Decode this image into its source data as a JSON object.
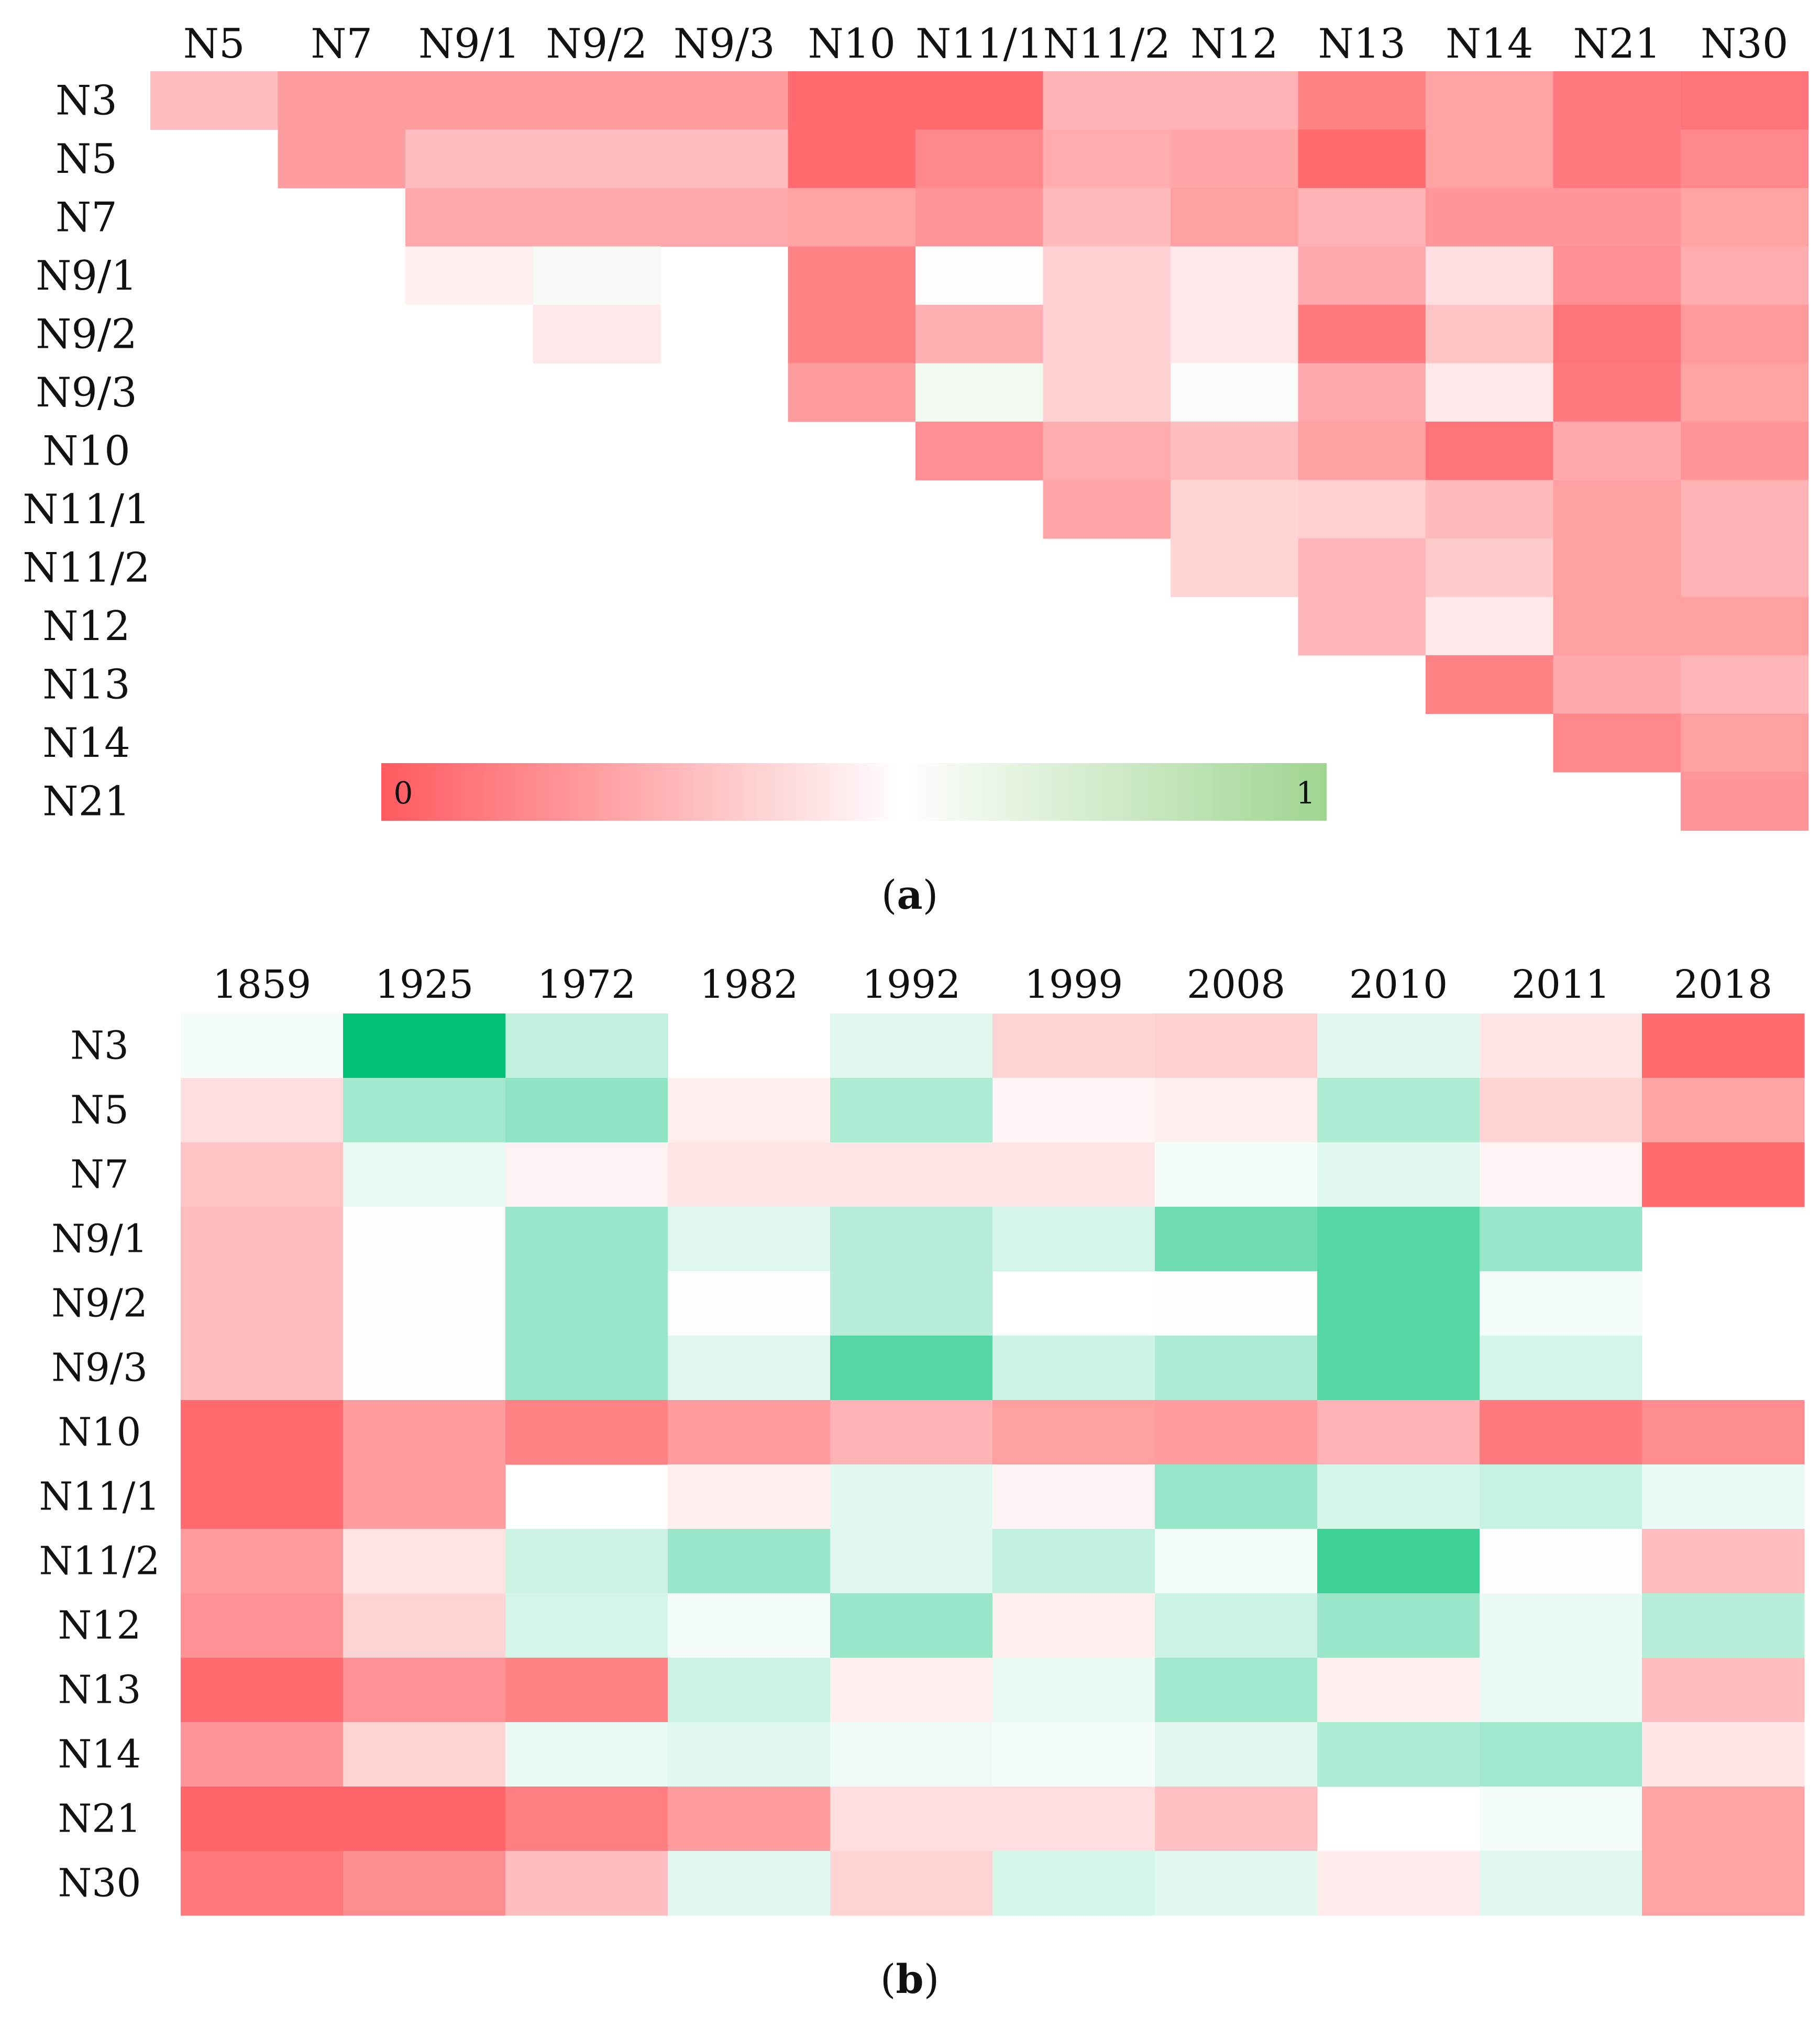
{
  "chart_data": [
    {
      "type": "heatmap",
      "panel_label": "a",
      "title": "",
      "xlabel": "",
      "ylabel": "",
      "columns": [
        "N5",
        "N7",
        "N9/1",
        "N9/2",
        "N9/3",
        "N10",
        "N11/1",
        "N11/2",
        "N12",
        "N13",
        "N14",
        "N21",
        "N30"
      ],
      "rows": [
        "N3",
        "N5",
        "N7",
        "N9/1",
        "N9/2",
        "N9/3",
        "N10",
        "N11/1",
        "N11/2",
        "N12",
        "N13",
        "N14",
        "N21"
      ],
      "value_range": [
        0,
        1
      ],
      "color_scale": {
        "low": "#ff5a5f",
        "mid": "#ffffff",
        "high": "#9fd591"
      },
      "colorbar": {
        "min_label": "0",
        "max_label": "1"
      },
      "values": [
        [
          0.3,
          0.2,
          0.2,
          0.2,
          0.2,
          0.05,
          0.05,
          0.27,
          0.27,
          0.12,
          0.22,
          0.1,
          0.08
        ],
        [
          null,
          0.2,
          0.3,
          0.3,
          0.3,
          0.05,
          0.14,
          0.25,
          0.23,
          0.05,
          0.22,
          0.1,
          0.14
        ],
        [
          null,
          null,
          0.24,
          0.24,
          0.24,
          0.22,
          0.18,
          0.29,
          0.21,
          0.27,
          0.18,
          0.18,
          0.22
        ],
        [
          null,
          null,
          0.45,
          0.55,
          null,
          0.12,
          0.49,
          0.36,
          0.43,
          0.24,
          0.4,
          0.16,
          0.25
        ],
        [
          null,
          null,
          null,
          0.43,
          null,
          0.12,
          0.26,
          0.36,
          0.43,
          0.1,
          0.32,
          0.08,
          0.19
        ],
        [
          null,
          null,
          null,
          null,
          null,
          0.2,
          0.56,
          0.36,
          0.52,
          0.24,
          0.43,
          0.1,
          0.22
        ],
        [
          null,
          null,
          null,
          null,
          null,
          null,
          0.16,
          0.25,
          0.3,
          0.21,
          0.08,
          0.24,
          0.18
        ],
        [
          null,
          null,
          null,
          null,
          null,
          null,
          null,
          0.23,
          0.37,
          0.35,
          0.29,
          0.21,
          0.27
        ],
        [
          null,
          null,
          null,
          null,
          null,
          null,
          null,
          null,
          0.37,
          0.28,
          0.34,
          0.21,
          0.27
        ],
        [
          null,
          null,
          null,
          null,
          null,
          null,
          null,
          null,
          null,
          0.28,
          0.43,
          0.21,
          0.21
        ],
        [
          null,
          null,
          null,
          null,
          null,
          null,
          null,
          null,
          null,
          null,
          0.12,
          0.24,
          0.28
        ],
        [
          null,
          null,
          null,
          null,
          null,
          null,
          null,
          null,
          null,
          null,
          null,
          0.14,
          0.21
        ],
        [
          null,
          null,
          null,
          null,
          null,
          null,
          null,
          null,
          null,
          null,
          null,
          null,
          0.18
        ]
      ]
    },
    {
      "type": "heatmap",
      "panel_label": "b",
      "title": "",
      "xlabel": "",
      "ylabel": "",
      "columns": [
        "1859",
        "1925",
        "1972",
        "1982",
        "1992",
        "1999",
        "2008",
        "2010",
        "2011",
        "2018"
      ],
      "rows": [
        "N3",
        "N5",
        "N7",
        "N9/1",
        "N9/2",
        "N9/3",
        "N10",
        "N11/1",
        "N11/2",
        "N12",
        "N13",
        "N14",
        "N21",
        "N30"
      ],
      "value_range": [
        0,
        1
      ],
      "color_scale": {
        "low": "#ff5a5f",
        "mid": "#ffffff",
        "high": "#00c176"
      },
      "values": [
        [
          0.52,
          1.0,
          0.62,
          null,
          0.56,
          0.37,
          0.35,
          0.56,
          0.42,
          0.05
        ],
        [
          0.4,
          0.68,
          0.72,
          0.45,
          0.66,
          0.47,
          0.45,
          0.66,
          0.37,
          0.22
        ],
        [
          0.32,
          0.54,
          0.46,
          0.42,
          0.42,
          0.42,
          0.52,
          0.56,
          0.47,
          0.05
        ],
        [
          0.3,
          0.49,
          0.7,
          0.56,
          0.64,
          0.58,
          0.78,
          0.83,
          0.7,
          null
        ],
        [
          0.3,
          0.49,
          0.7,
          0.49,
          0.64,
          null,
          0.49,
          0.83,
          0.52,
          null
        ],
        [
          0.3,
          0.49,
          0.7,
          0.56,
          0.83,
          0.6,
          0.66,
          0.83,
          0.58,
          null
        ],
        [
          0.05,
          0.2,
          0.12,
          0.2,
          0.27,
          0.21,
          0.2,
          0.27,
          0.1,
          0.15
        ],
        [
          0.05,
          0.2,
          null,
          0.45,
          0.56,
          0.46,
          0.7,
          0.58,
          0.61,
          0.54
        ],
        [
          0.2,
          0.42,
          0.6,
          0.7,
          0.56,
          0.62,
          0.52,
          0.88,
          0.49,
          0.3
        ],
        [
          0.17,
          0.37,
          0.58,
          0.52,
          0.7,
          0.45,
          0.6,
          0.7,
          0.54,
          0.64
        ],
        [
          0.05,
          0.17,
          0.12,
          0.6,
          0.45,
          0.54,
          0.68,
          0.45,
          0.54,
          0.3
        ],
        [
          0.18,
          0.37,
          0.54,
          0.56,
          0.53,
          0.52,
          0.56,
          0.66,
          0.68,
          0.42
        ],
        [
          0.03,
          0.03,
          0.11,
          0.2,
          0.4,
          0.4,
          0.31,
          null,
          0.52,
          0.22
        ],
        [
          0.09,
          0.15,
          0.3,
          0.56,
          0.37,
          0.58,
          0.56,
          0.44,
          0.56,
          0.22
        ]
      ]
    }
  ]
}
